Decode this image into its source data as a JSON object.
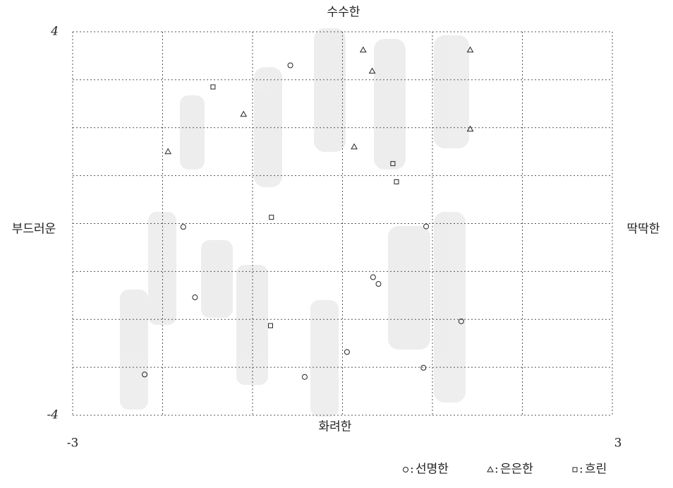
{
  "chart_data": {
    "type": "scatter",
    "axis_labels": {
      "top": "수수한",
      "bottom": "화려한",
      "left": "부드러운",
      "right": "딱딱한"
    },
    "xlim": [
      -3,
      3
    ],
    "ylim": [
      -4,
      4
    ],
    "xticks": [
      -3,
      3
    ],
    "yticks": [
      -4,
      4
    ],
    "grid": true,
    "series": [
      {
        "name": "선명한",
        "marker": "circle",
        "color": "#222222",
        "x": [
          -0.58,
          -1.77,
          0.93,
          -1.64,
          0.34,
          0.4,
          1.32,
          0.05,
          -0.42,
          -2.2,
          0.9
        ],
        "values": [
          3.3,
          -0.07,
          -0.06,
          -1.54,
          -1.12,
          -1.26,
          -2.04,
          -2.68,
          -3.2,
          -3.15,
          -3.01
        ]
      },
      {
        "name": "은은한",
        "marker": "triangle",
        "color": "#222222",
        "x": [
          0.23,
          1.42,
          -1.1,
          -1.94,
          0.13,
          1.42,
          0.33
        ],
        "values": [
          3.62,
          3.62,
          2.28,
          1.5,
          1.6,
          1.97,
          3.18
        ]
      },
      {
        "name": "흐린",
        "marker": "square",
        "color": "#222222",
        "x": [
          -1.44,
          -0.79,
          0.56,
          0.6,
          -0.8
        ],
        "values": [
          2.85,
          0.13,
          1.25,
          0.87,
          -2.13
        ]
      }
    ]
  }
}
